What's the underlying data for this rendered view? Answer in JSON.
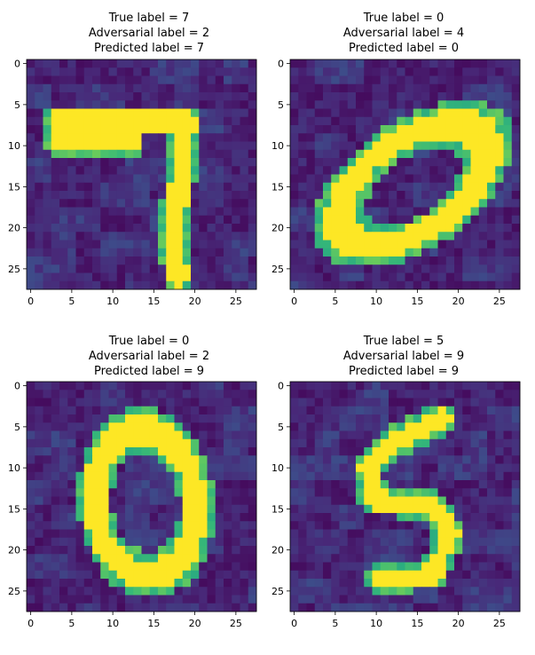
{
  "chart_data": [
    {
      "type": "heatmap",
      "title": [
        "True label = 7",
        "Adversarial label = 2",
        "Predicted label = 7"
      ],
      "true_label": 7,
      "adversarial_label": 2,
      "predicted_label": 7,
      "x_ticks": [
        0,
        5,
        10,
        15,
        20,
        25
      ],
      "y_ticks": [
        0,
        5,
        10,
        15,
        20,
        25
      ],
      "xlim": [
        -0.5,
        27.5
      ],
      "ylim": [
        27.5,
        -0.5
      ],
      "colormap": "viridis",
      "strokes": [
        {
          "from": [
            3.5,
            7
          ],
          "to": [
            19,
            7
          ]
        },
        {
          "from": [
            3.5,
            9.5
          ],
          "to": [
            12,
            9.5
          ]
        },
        {
          "from": [
            19,
            7
          ],
          "to": [
            17.5,
            20
          ]
        },
        {
          "from": [
            17.5,
            20
          ],
          "to": [
            18,
            26
          ]
        }
      ],
      "stroke_width": 2.1
    },
    {
      "type": "heatmap",
      "title": [
        "True label = 0",
        "Adversarial label = 4",
        "Predicted label = 0"
      ],
      "true_label": 0,
      "adversarial_label": 4,
      "predicted_label": 0,
      "x_ticks": [
        0,
        5,
        10,
        15,
        20,
        25
      ],
      "y_ticks": [
        0,
        5,
        10,
        15,
        20,
        25
      ],
      "xlim": [
        -0.5,
        27.5
      ],
      "ylim": [
        27.5,
        -0.5
      ],
      "colormap": "viridis",
      "ellipses": [
        {
          "center": [
            14.5,
            14.8
          ],
          "rx": 10.2,
          "ry": 5.6,
          "angle_deg": -35
        }
      ],
      "stroke_width": 2.3
    },
    {
      "type": "heatmap",
      "title": [
        "True label = 0",
        "Adversarial label = 2",
        "Predicted label = 9"
      ],
      "true_label": 0,
      "adversarial_label": 2,
      "predicted_label": 9,
      "x_ticks": [
        0,
        5,
        10,
        15,
        20,
        25
      ],
      "y_ticks": [
        0,
        5,
        10,
        15,
        20,
        25
      ],
      "xlim": [
        -0.5,
        27.5
      ],
      "ylim": [
        27.5,
        -0.5
      ],
      "colormap": "viridis",
      "ellipses": [
        {
          "center": [
            14,
            14.3
          ],
          "rx": 6.2,
          "ry": 8.8,
          "angle_deg": -6
        }
      ],
      "stroke_width": 2.3
    },
    {
      "type": "heatmap",
      "title": [
        "True label = 5",
        "Adversarial label = 9",
        "Predicted label = 9"
      ],
      "true_label": 5,
      "adversarial_label": 9,
      "predicted_label": 9,
      "x_ticks": [
        0,
        5,
        10,
        15,
        20,
        25
      ],
      "y_ticks": [
        0,
        5,
        10,
        15,
        20,
        25
      ],
      "xlim": [
        -0.5,
        27.5
      ],
      "ylim": [
        27.5,
        -0.5
      ],
      "colormap": "viridis",
      "strokes": [
        {
          "from": [
            18,
            4
          ],
          "to": [
            12,
            7
          ]
        },
        {
          "from": [
            12,
            7
          ],
          "to": [
            9,
            10
          ]
        },
        {
          "from": [
            9,
            10
          ],
          "to": [
            9.5,
            14
          ]
        },
        {
          "from": [
            9.5,
            14
          ],
          "to": [
            17,
            14.5
          ]
        },
        {
          "from": [
            17,
            14.5
          ],
          "to": [
            19,
            18
          ]
        },
        {
          "from": [
            19,
            18
          ],
          "to": [
            17,
            23
          ]
        },
        {
          "from": [
            17,
            23
          ],
          "to": [
            10,
            23.5
          ]
        }
      ],
      "stroke_width": 2.0
    }
  ]
}
